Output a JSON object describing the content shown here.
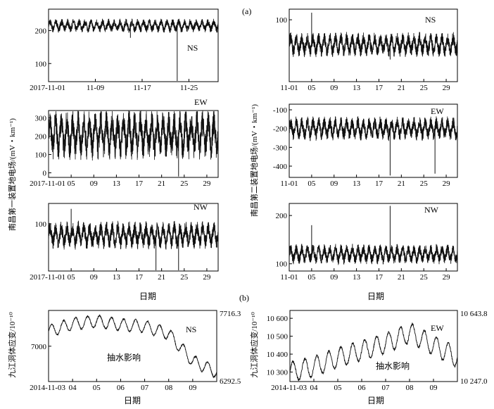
{
  "figure": {
    "panel_a_label": "(a)",
    "panel_b_label": "(b)",
    "left_ylabel": "南昌第一装置地电场/(mV・km⁻¹)",
    "right_ylabel": "南昌第二装置地电场/(mV・km⁻¹)",
    "date_label_a": "日期",
    "date_label_b_left": "日期",
    "date_label_b_right": "日期",
    "strain_ylabel_left": "九江洞体应变/10⁻¹⁰",
    "strain_ylabel_right": "九江洞体应变/10⁻¹⁰",
    "pump_label": "抽水影响"
  },
  "chart_data": [
    {
      "id": "L-NS",
      "type": "line",
      "component": "NS",
      "x_ticks": [
        "2017-11-01",
        "11-09",
        "11-17",
        "11-25"
      ],
      "y_ticks": [
        100,
        200
      ],
      "ylim": [
        45,
        265
      ],
      "x": [
        "2017-11-01",
        "2017-11-30"
      ],
      "baseline": 215,
      "oscillation_amplitude": 18,
      "spikes": [
        {
          "x": "2017-11-23",
          "value": 45
        },
        {
          "x": "2017-11-15",
          "value": 178
        }
      ]
    },
    {
      "id": "L-EW",
      "type": "line",
      "component": "EW",
      "x_ticks": [
        "2017-11-01",
        "05",
        "09",
        "13",
        "17",
        "21",
        "25",
        "29"
      ],
      "y_ticks": [
        0,
        100,
        200,
        300
      ],
      "ylim": [
        -25,
        340
      ],
      "x": [
        "2017-11-01",
        "2017-11-31"
      ],
      "baseline": 210,
      "oscillation_amplitude": 120,
      "spikes": [
        {
          "x": "2017-11-24",
          "value": -20
        },
        {
          "x": "2017-11-01",
          "value": 0
        }
      ]
    },
    {
      "id": "L-NW",
      "type": "line",
      "component": "NW",
      "x_ticks": [
        "2017-11-01",
        "05",
        "09",
        "13",
        "17",
        "21",
        "25",
        "29"
      ],
      "y_ticks": [
        100
      ],
      "ylim": [
        30,
        130
      ],
      "x": [
        "2017-11-01",
        "2017-11-31"
      ],
      "baseline": 83,
      "oscillation_amplitude": 18,
      "spikes": [
        {
          "x": "2017-11-05",
          "value": 122
        },
        {
          "x": "2017-11-20",
          "value": 30
        },
        {
          "x": "2017-11-24",
          "value": 30
        }
      ]
    },
    {
      "id": "R-NS",
      "type": "line",
      "component": "NS",
      "x_ticks": [
        "11-01",
        "05",
        "09",
        "13",
        "17",
        "21",
        "25",
        "29"
      ],
      "y_ticks": [
        100
      ],
      "ylim": [
        30,
        112
      ],
      "x": [
        "2017-11-01",
        "2017-11-31"
      ],
      "baseline": 72,
      "oscillation_amplitude": 12,
      "spikes": [
        {
          "x": "2017-11-05",
          "value": 108
        },
        {
          "x": "2017-11-19",
          "value": 55
        }
      ]
    },
    {
      "id": "R-EW",
      "type": "line",
      "component": "EW",
      "x_ticks": [
        "11-01",
        "05",
        "09",
        "13",
        "17",
        "21",
        "25",
        "29"
      ],
      "y_ticks": [
        -100,
        -200,
        -300,
        -400
      ],
      "ylim": [
        -460,
        -70
      ],
      "x": [
        "2017-11-01",
        "2017-11-31"
      ],
      "baseline": -200,
      "oscillation_amplitude": 55,
      "spikes": [
        {
          "x": "2017-11-19",
          "value": -450
        },
        {
          "x": "2017-11-27",
          "value": -440
        }
      ]
    },
    {
      "id": "R-NW",
      "type": "line",
      "component": "NW",
      "x_ticks": [
        "11-01",
        "05",
        "09",
        "13",
        "17",
        "21",
        "25",
        "29"
      ],
      "y_ticks": [
        100,
        200
      ],
      "ylim": [
        85,
        225
      ],
      "x": [
        "2017-11-01",
        "2017-11-31"
      ],
      "baseline": 120,
      "oscillation_amplitude": 18,
      "spikes": [
        {
          "x": "2017-11-05",
          "value": 180
        },
        {
          "x": "2017-11-19",
          "value": 220
        }
      ]
    },
    {
      "id": "B-NS",
      "type": "line",
      "component": "NS",
      "x_ticks": [
        "2014-11-03",
        "04",
        "05",
        "06",
        "07",
        "08",
        "09"
      ],
      "y_ticks_left": [
        "7000"
      ],
      "y_ticks_right": [
        "7716.3",
        "6292.5"
      ],
      "ylim": [
        6292.5,
        7716.3
      ],
      "x": [
        "2014-11-03",
        "2014-11-10"
      ],
      "daily_means": [
        7300,
        7450,
        7500,
        7430,
        7400,
        7250,
        6700,
        6480
      ],
      "daily_amplitude": 120
    },
    {
      "id": "B-EW",
      "type": "line",
      "component": "EW",
      "x_ticks": [
        "2014-11-03",
        "04",
        "05",
        "06",
        "07",
        "08",
        "09"
      ],
      "y_ticks_left": [
        "10 300",
        "10 400",
        "10 500",
        "10 600"
      ],
      "y_ticks_right": [
        "10 643.8",
        "10 247.0"
      ],
      "ylim": [
        10247.0,
        10643.8
      ],
      "x": [
        "2014-11-03",
        "2014-11-10"
      ],
      "daily_means": [
        10300,
        10330,
        10380,
        10420,
        10460,
        10520,
        10450,
        10380
      ],
      "daily_amplitude": 55
    }
  ]
}
